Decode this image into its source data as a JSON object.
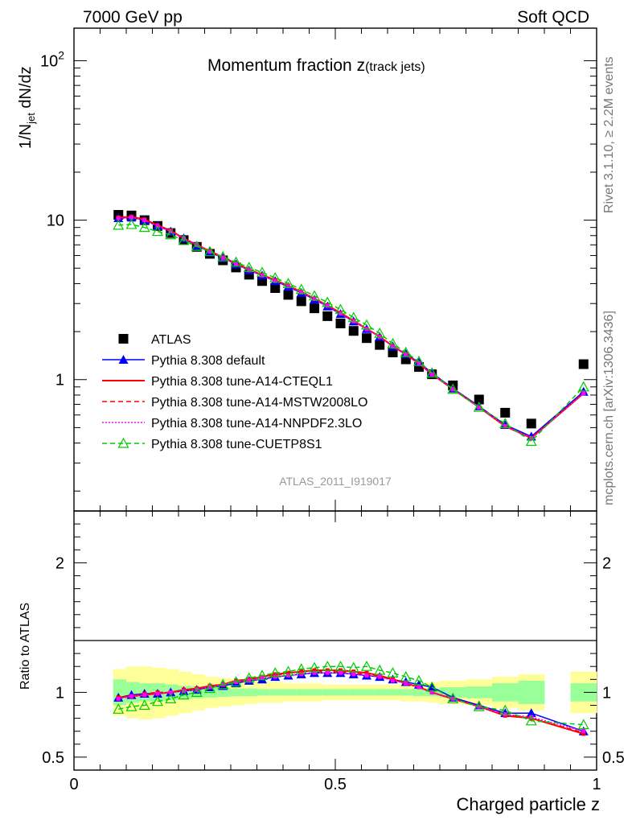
{
  "header": {
    "left": "7000 GeV pp",
    "right": "Soft QCD"
  },
  "side_labels": {
    "rivet": "Rivet 3.1.10, ≥ 2.2M events",
    "mcplots": "mcplots.cern.ch [arXiv:1306.3436]"
  },
  "chart_data": [
    {
      "type": "scatter",
      "title": "Momentum fraction z",
      "title_sub": "(track jets)",
      "ylabel": "1/N",
      "ylabel_sub": "jet",
      "ylabel_tail": " dN/dz",
      "analysis_label": "ATLAS_2011_I919017",
      "xlim": [
        0,
        1
      ],
      "ylim": [
        0.15,
        160
      ],
      "y_scale": "log",
      "y_ticks": [
        {
          "value": 1,
          "label": "1"
        },
        {
          "value": 10,
          "label": "10"
        },
        {
          "value": 100,
          "label": "10",
          "sup": "2"
        }
      ],
      "legend_position": "center-left",
      "x": [
        0.085,
        0.11,
        0.135,
        0.16,
        0.185,
        0.21,
        0.235,
        0.26,
        0.285,
        0.31,
        0.335,
        0.36,
        0.385,
        0.41,
        0.435,
        0.46,
        0.485,
        0.51,
        0.535,
        0.56,
        0.585,
        0.61,
        0.635,
        0.66,
        0.685,
        0.725,
        0.775,
        0.825,
        0.875,
        0.975
      ],
      "series": [
        {
          "name": "ATLAS",
          "color": "#000000",
          "style": "data",
          "values": [
            10.8,
            10.7,
            10.0,
            9.2,
            8.3,
            7.5,
            6.8,
            6.15,
            5.6,
            5.05,
            4.55,
            4.15,
            3.75,
            3.4,
            3.1,
            2.8,
            2.5,
            2.25,
            2.02,
            1.82,
            1.65,
            1.48,
            1.34,
            1.2,
            1.08,
            0.92,
            0.75,
            0.62,
            0.53,
            1.25
          ]
        },
        {
          "name": "Pythia 8.308 default",
          "color": "#0000ff",
          "style": "solid-triangle",
          "values": [
            10.3,
            10.4,
            10.0,
            9.2,
            8.5,
            7.7,
            6.9,
            6.3,
            5.8,
            5.3,
            4.85,
            4.5,
            4.15,
            3.82,
            3.5,
            3.18,
            2.88,
            2.58,
            2.32,
            2.08,
            1.86,
            1.62,
            1.45,
            1.28,
            1.1,
            0.88,
            0.68,
            0.52,
            0.44,
            0.84
          ]
        },
        {
          "name": "Pythia 8.308 tune-A14-CTEQL1",
          "color": "#ff0000",
          "style": "solid",
          "values": [
            10.4,
            10.5,
            10.1,
            9.3,
            8.6,
            7.7,
            7.0,
            6.4,
            5.85,
            5.35,
            4.9,
            4.55,
            4.2,
            3.88,
            3.55,
            3.22,
            2.92,
            2.62,
            2.34,
            2.08,
            1.86,
            1.62,
            1.44,
            1.26,
            1.08,
            0.87,
            0.67,
            0.51,
            0.43,
            0.82
          ]
        },
        {
          "name": "Pythia 8.308 tune-A14-MSTW2008LO",
          "color": "#ff0000",
          "style": "dashed",
          "values": [
            10.4,
            10.5,
            10.1,
            9.3,
            8.6,
            7.7,
            7.0,
            6.4,
            5.85,
            5.35,
            4.9,
            4.55,
            4.2,
            3.88,
            3.55,
            3.22,
            2.92,
            2.62,
            2.34,
            2.08,
            1.86,
            1.62,
            1.44,
            1.26,
            1.08,
            0.87,
            0.67,
            0.51,
            0.43,
            0.82
          ]
        },
        {
          "name": "Pythia 8.308 tune-A14-NNPDF2.3LO",
          "color": "#ff00ff",
          "style": "dotted",
          "values": [
            10.3,
            10.4,
            10.0,
            9.2,
            8.5,
            7.7,
            7.0,
            6.35,
            5.8,
            5.3,
            4.85,
            4.5,
            4.15,
            3.85,
            3.52,
            3.2,
            2.9,
            2.6,
            2.32,
            2.07,
            1.85,
            1.61,
            1.43,
            1.26,
            1.08,
            0.87,
            0.67,
            0.51,
            0.43,
            0.82
          ]
        },
        {
          "name": "Pythia 8.308 tune-CUETP8S1",
          "color": "#00cc00",
          "style": "dashed-open-triangle",
          "values": [
            9.3,
            9.4,
            9.0,
            8.5,
            8.1,
            7.45,
            6.85,
            6.35,
            5.9,
            5.45,
            5.05,
            4.7,
            4.35,
            4.0,
            3.68,
            3.35,
            3.05,
            2.75,
            2.45,
            2.2,
            1.95,
            1.68,
            1.48,
            1.3,
            1.1,
            0.87,
            0.67,
            0.53,
            0.41,
            0.9
          ]
        }
      ]
    },
    {
      "type": "scatter",
      "title": "",
      "xlabel": "Charged particle z",
      "ylabel": "Ratio to ATLAS",
      "xlim": [
        0,
        1
      ],
      "ylim": [
        0.4,
        2.4
      ],
      "x_ticks": [
        {
          "value": 0,
          "label": "0"
        },
        {
          "value": 0.5,
          "label": "0.5"
        },
        {
          "value": 1,
          "label": "1"
        }
      ],
      "y_ticks": [
        {
          "value": 0.5,
          "label": "0.5"
        },
        {
          "value": 1,
          "label": "1"
        },
        {
          "value": 2,
          "label": "2"
        }
      ],
      "bands": {
        "bin_edges": [
          0.075,
          0.1,
          0.125,
          0.15,
          0.175,
          0.2,
          0.225,
          0.25,
          0.275,
          0.3,
          0.325,
          0.35,
          0.375,
          0.4,
          0.425,
          0.45,
          0.475,
          0.5,
          0.525,
          0.55,
          0.575,
          0.6,
          0.625,
          0.65,
          0.675,
          0.7,
          0.75,
          0.8,
          0.85,
          0.9,
          0.95,
          1.0
        ],
        "stat_color": "#99ff99",
        "syst_color": "#ffff99",
        "inner": [
          [
            0.9,
            1.1
          ],
          [
            0.92,
            1.08
          ],
          [
            0.93,
            1.07
          ],
          [
            0.93,
            1.07
          ],
          [
            0.94,
            1.06
          ],
          [
            0.95,
            1.05
          ],
          [
            0.955,
            1.045
          ],
          [
            0.96,
            1.04
          ],
          [
            0.965,
            1.035
          ],
          [
            0.97,
            1.03
          ],
          [
            0.97,
            1.03
          ],
          [
            0.975,
            1.025
          ],
          [
            0.975,
            1.025
          ],
          [
            0.975,
            1.025
          ],
          [
            0.975,
            1.025
          ],
          [
            0.975,
            1.025
          ],
          [
            0.975,
            1.025
          ],
          [
            0.975,
            1.025
          ],
          [
            0.975,
            1.025
          ],
          [
            0.975,
            1.025
          ],
          [
            0.975,
            1.025
          ],
          [
            0.975,
            1.025
          ],
          [
            0.975,
            1.025
          ],
          [
            0.97,
            1.03
          ],
          [
            0.97,
            1.03
          ],
          [
            0.96,
            1.04
          ],
          [
            0.955,
            1.045
          ],
          [
            0.93,
            1.07
          ],
          [
            0.91,
            1.09
          ],
          null,
          [
            0.93,
            1.07
          ]
        ],
        "outer": [
          [
            0.82,
            1.18
          ],
          [
            0.8,
            1.2
          ],
          [
            0.79,
            1.2
          ],
          [
            0.8,
            1.19
          ],
          [
            0.82,
            1.18
          ],
          [
            0.84,
            1.16
          ],
          [
            0.86,
            1.14
          ],
          [
            0.88,
            1.12
          ],
          [
            0.89,
            1.11
          ],
          [
            0.9,
            1.1
          ],
          [
            0.91,
            1.09
          ],
          [
            0.92,
            1.08
          ],
          [
            0.92,
            1.08
          ],
          [
            0.93,
            1.07
          ],
          [
            0.93,
            1.07
          ],
          [
            0.93,
            1.07
          ],
          [
            0.94,
            1.06
          ],
          [
            0.94,
            1.06
          ],
          [
            0.94,
            1.06
          ],
          [
            0.94,
            1.06
          ],
          [
            0.94,
            1.06
          ],
          [
            0.94,
            1.06
          ],
          [
            0.93,
            1.07
          ],
          [
            0.93,
            1.07
          ],
          [
            0.92,
            1.08
          ],
          [
            0.91,
            1.09
          ],
          [
            0.9,
            1.1
          ],
          [
            0.88,
            1.12
          ],
          [
            0.86,
            1.14
          ],
          null,
          [
            0.84,
            1.16
          ]
        ]
      },
      "x": [
        0.085,
        0.11,
        0.135,
        0.16,
        0.185,
        0.21,
        0.235,
        0.26,
        0.285,
        0.31,
        0.335,
        0.36,
        0.385,
        0.41,
        0.435,
        0.46,
        0.485,
        0.51,
        0.535,
        0.56,
        0.585,
        0.61,
        0.635,
        0.66,
        0.685,
        0.725,
        0.775,
        0.825,
        0.875,
        0.975
      ],
      "series": [
        {
          "name": "Pythia 8.308 default",
          "color": "#0000ff",
          "style": "solid-triangle",
          "values": [
            0.96,
            0.98,
            0.99,
            0.99,
            1.0,
            1.01,
            1.02,
            1.04,
            1.05,
            1.07,
            1.09,
            1.1,
            1.12,
            1.13,
            1.14,
            1.15,
            1.15,
            1.15,
            1.14,
            1.13,
            1.12,
            1.1,
            1.08,
            1.06,
            1.04,
            0.96,
            0.9,
            0.84,
            0.84,
            0.7
          ]
        },
        {
          "name": "Pythia 8.308 tune-A14-CTEQL1",
          "color": "#ff0000",
          "style": "solid",
          "values": [
            0.96,
            0.97,
            0.98,
            0.99,
            1.0,
            1.02,
            1.03,
            1.05,
            1.06,
            1.09,
            1.1,
            1.12,
            1.14,
            1.15,
            1.16,
            1.17,
            1.17,
            1.17,
            1.16,
            1.15,
            1.13,
            1.1,
            1.07,
            1.04,
            1.0,
            0.95,
            0.89,
            0.82,
            0.8,
            0.68
          ]
        },
        {
          "name": "Pythia 8.308 tune-A14-MSTW2008LO",
          "color": "#ff0000",
          "style": "dashed",
          "values": [
            0.96,
            0.97,
            0.99,
            1.0,
            1.0,
            1.02,
            1.03,
            1.05,
            1.06,
            1.08,
            1.1,
            1.12,
            1.13,
            1.15,
            1.16,
            1.16,
            1.16,
            1.16,
            1.15,
            1.14,
            1.12,
            1.1,
            1.07,
            1.04,
            1.0,
            0.95,
            0.89,
            0.83,
            0.8,
            0.69
          ]
        },
        {
          "name": "Pythia 8.308 tune-A14-NNPDF2.3LO",
          "color": "#ff00ff",
          "style": "dotted",
          "values": [
            0.95,
            0.97,
            0.98,
            0.99,
            1.0,
            1.01,
            1.02,
            1.04,
            1.06,
            1.08,
            1.09,
            1.11,
            1.12,
            1.13,
            1.14,
            1.15,
            1.15,
            1.15,
            1.14,
            1.13,
            1.12,
            1.09,
            1.07,
            1.04,
            1.0,
            0.95,
            0.89,
            0.83,
            0.81,
            0.7
          ]
        },
        {
          "name": "Pythia 8.308 tune-CUETP8S1",
          "color": "#00cc00",
          "style": "dashed-open-triangle",
          "values": [
            0.87,
            0.89,
            0.9,
            0.93,
            0.95,
            0.98,
            1.0,
            1.03,
            1.06,
            1.08,
            1.11,
            1.13,
            1.15,
            1.16,
            1.18,
            1.19,
            1.2,
            1.2,
            1.19,
            1.2,
            1.17,
            1.15,
            1.12,
            1.09,
            1.04,
            0.95,
            0.89,
            0.86,
            0.78,
            0.75
          ]
        }
      ]
    }
  ]
}
